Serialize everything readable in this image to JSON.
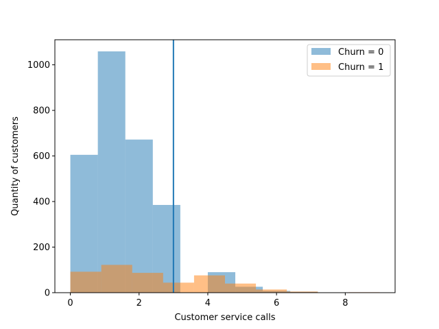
{
  "chart_data": {
    "type": "bar",
    "xlabel": "Customer service calls",
    "ylabel": "Quantity of customers",
    "xlim": [
      -0.45,
      9.45
    ],
    "ylim": [
      0,
      1110
    ],
    "xticks": [
      0,
      2,
      4,
      6,
      8
    ],
    "yticks": [
      0,
      200,
      400,
      600,
      800,
      1000
    ],
    "grid": false,
    "legend_position": "top-right",
    "reference_line_x": 3,
    "series": [
      {
        "name": "Churn = 0",
        "color": "#1f77b4",
        "alpha": 0.5,
        "bins": [
          {
            "x0": 0.0,
            "x1": 0.8,
            "value": 605
          },
          {
            "x0": 0.8,
            "x1": 1.6,
            "value": 1059
          },
          {
            "x0": 1.6,
            "x1": 2.4,
            "value": 672
          },
          {
            "x0": 2.4,
            "x1": 3.2,
            "value": 385
          },
          {
            "x0": 3.2,
            "x1": 4.0,
            "value": 0
          },
          {
            "x0": 4.0,
            "x1": 4.8,
            "value": 90
          },
          {
            "x0": 4.8,
            "x1": 5.6,
            "value": 26
          },
          {
            "x0": 5.6,
            "x1": 6.4,
            "value": 8
          },
          {
            "x0": 6.4,
            "x1": 7.2,
            "value": 4
          },
          {
            "x0": 7.2,
            "x1": 8.0,
            "value": 0
          },
          {
            "x0": 8.0,
            "x1": 8.8,
            "value": 1
          }
        ]
      },
      {
        "name": "Churn = 1",
        "color": "#ff7f0e",
        "alpha": 0.5,
        "bins": [
          {
            "x0": 0.0,
            "x1": 0.9,
            "value": 92
          },
          {
            "x0": 0.9,
            "x1": 1.8,
            "value": 122
          },
          {
            "x0": 1.8,
            "x1": 2.7,
            "value": 87
          },
          {
            "x0": 2.7,
            "x1": 3.6,
            "value": 44
          },
          {
            "x0": 3.6,
            "x1": 4.5,
            "value": 76
          },
          {
            "x0": 4.5,
            "x1": 5.4,
            "value": 40
          },
          {
            "x0": 5.4,
            "x1": 6.3,
            "value": 14
          },
          {
            "x0": 6.3,
            "x1": 7.2,
            "value": 5
          },
          {
            "x0": 7.2,
            "x1": 8.1,
            "value": 0
          },
          {
            "x0": 8.1,
            "x1": 9.0,
            "value": 2
          }
        ]
      }
    ],
    "reference_line_color": "#1f77b4"
  }
}
